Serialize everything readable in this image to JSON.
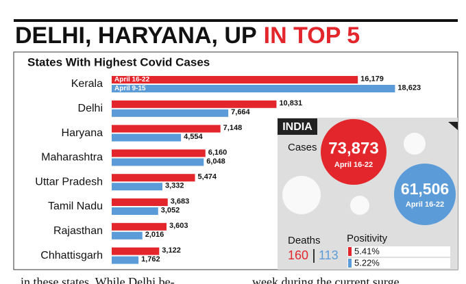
{
  "chart_data": {
    "type": "bar",
    "orientation": "horizontal",
    "headline": "DELHI, HARYANA, UP",
    "headline_highlight": "IN TOP 5",
    "title": "States With Highest Covid Cases",
    "categories": [
      "Kerala",
      "Delhi",
      "Haryana",
      "Maharashtra",
      "Uttar Pradesh",
      "Tamil Nadu",
      "Rajasthan",
      "Chhattisgarh"
    ],
    "series": [
      {
        "name": "April 16-22",
        "color": "#e3262c",
        "values": [
          16179,
          10831,
          7148,
          6160,
          5474,
          3683,
          3603,
          3122
        ],
        "value_labels": [
          "16,179",
          "10,831",
          "7,148",
          "6,160",
          "5,474",
          "3,683",
          "3,603",
          "3,122"
        ]
      },
      {
        "name": "April 9-15",
        "color": "#5b9bd8",
        "values": [
          18623,
          7664,
          4554,
          6048,
          3332,
          3052,
          2016,
          1762
        ],
        "value_labels": [
          "18,623",
          "7,664",
          "4,554",
          "6,048",
          "3,332",
          "3,052",
          "2,016",
          "1,762"
        ]
      }
    ],
    "xlim": [
      0,
      20000
    ]
  },
  "inset": {
    "title": "INDIA",
    "cases_label": "Cases",
    "current": {
      "value": "73,873",
      "period": "April 16-22"
    },
    "previous": {
      "value": "61,506",
      "period": "April 16-22"
    },
    "deaths_label": "Deaths",
    "deaths": [
      "160",
      "113"
    ],
    "positivity_label": "Positivity",
    "positivity": [
      "5.41%",
      "5.22%"
    ]
  },
  "footer_text": [
    "in these states. While Delhi be-",
    "week during the current surge"
  ]
}
